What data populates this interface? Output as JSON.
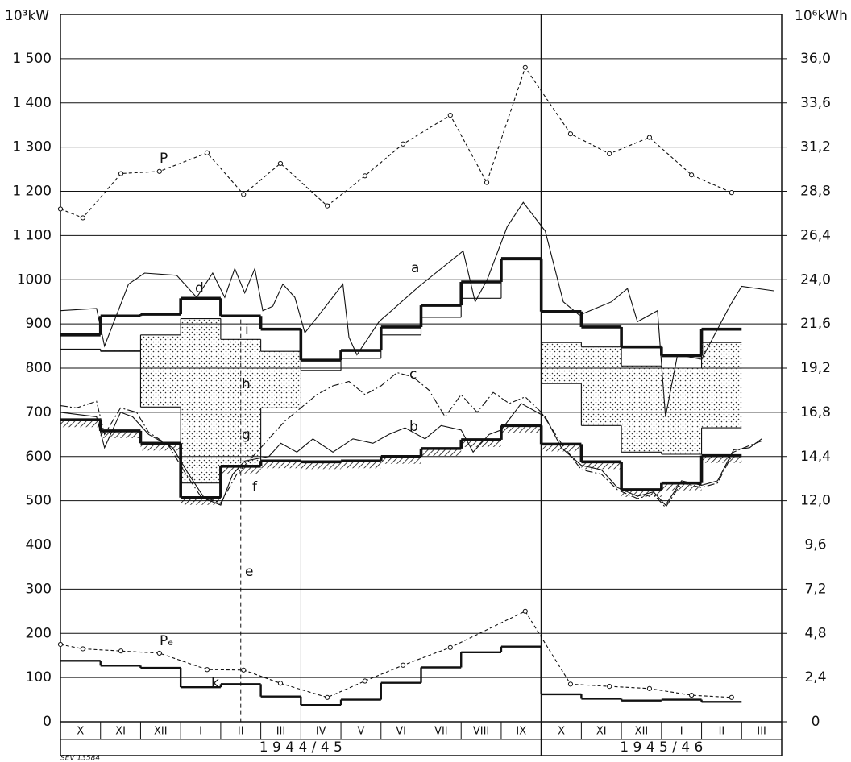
{
  "chart_data": {
    "type": "line",
    "y_label": "10³kW",
    "y2_label": "10⁶kWh",
    "categories": [
      "X",
      "XI",
      "XII",
      "I",
      "II",
      "III",
      "IV",
      "V",
      "VI",
      "VII",
      "VIII",
      "IX",
      "X",
      "XI",
      "XII",
      "I",
      "II",
      "III"
    ],
    "year_labels": [
      "1 9 4 4 / 4 5",
      "1 9 4 5 / 4 6"
    ],
    "xlim": [
      0,
      18
    ],
    "ylim": [
      0,
      1600
    ],
    "yticks": [
      0,
      100,
      200,
      300,
      400,
      500,
      600,
      700,
      800,
      900,
      {
        "value": 1000,
        "label": "1000"
      },
      {
        "value": 1100,
        "label": "1 100"
      },
      {
        "value": 1200,
        "label": "1 200"
      },
      {
        "value": 1300,
        "label": "1 300"
      },
      {
        "value": 1400,
        "label": "1 400"
      },
      {
        "value": 1500,
        "label": "1 500"
      }
    ],
    "y2lim": [
      0,
      38.4
    ],
    "y2ticks": [
      0,
      {
        "value": 2.4,
        "label": "2,4"
      },
      {
        "value": 4.8,
        "label": "4,8"
      },
      {
        "value": 7.2,
        "label": "7,2"
      },
      {
        "value": 9.6,
        "label": "9,6"
      },
      {
        "value": 12.0,
        "label": "12,0"
      },
      {
        "value": 14.4,
        "label": "14,4"
      },
      {
        "value": 16.8,
        "label": "16,8"
      },
      {
        "value": 19.2,
        "label": "19,2"
      },
      {
        "value": 21.6,
        "label": "21,6"
      },
      {
        "value": 24.0,
        "label": "24,0"
      },
      {
        "value": 26.4,
        "label": "26,4"
      },
      {
        "value": 28.8,
        "label": "28,8"
      },
      {
        "value": 31.2,
        "label": "31,2"
      },
      {
        "value": 33.6,
        "label": "33,6"
      },
      {
        "value": 36.0,
        "label": "36,0"
      }
    ],
    "grid": true,
    "color": "#111",
    "series": [
      {
        "name": "a",
        "kind": "curve",
        "dash": "solid",
        "weight": "thin",
        "x": [
          0,
          0.9,
          1.1,
          1.7,
          2.1,
          2.9,
          3.4,
          3.8,
          4.1,
          4.35,
          4.6,
          4.85,
          5.05,
          5.3,
          5.55,
          5.85,
          6.1,
          6.45,
          7.05,
          7.2,
          7.4,
          7.95,
          8.95,
          10.05,
          10.35,
          10.65,
          11.15,
          11.55,
          12.1,
          12.55,
          12.95,
          13.75,
          14.15,
          14.4,
          14.9,
          15.1,
          15.4,
          16.0,
          16.7,
          17.0,
          17.8
        ],
        "values": [
          930,
          935,
          850,
          990,
          1015,
          1010,
          960,
          1015,
          960,
          1025,
          970,
          1025,
          930,
          940,
          990,
          960,
          880,
          920,
          990,
          870,
          830,
          905,
          985,
          1065,
          950,
          1000,
          1120,
          1175,
          1110,
          950,
          920,
          950,
          980,
          905,
          930,
          690,
          830,
          820,
          940,
          985,
          975
        ]
      },
      {
        "name": "b",
        "kind": "curve",
        "dash": "solid",
        "weight": "thin",
        "x": [
          0,
          0.9,
          1.1,
          1.5,
          1.8,
          2.2,
          2.8,
          3.2,
          3.6,
          4.0,
          4.3,
          4.6,
          5.2,
          5.5,
          5.9,
          6.3,
          6.8,
          7.3,
          7.8,
          8.2,
          8.6,
          9.1,
          9.5,
          10.0,
          10.3,
          10.7,
          11.0,
          11.5,
          12.1,
          12.5,
          13.0,
          13.5,
          13.9,
          14.4,
          14.8,
          15.1,
          15.5,
          16.0,
          16.4,
          16.8,
          17.2,
          17.5
        ],
        "values": [
          700,
          690,
          620,
          700,
          690,
          650,
          620,
          560,
          505,
          490,
          560,
          590,
          600,
          630,
          610,
          640,
          610,
          640,
          630,
          650,
          665,
          640,
          670,
          660,
          610,
          650,
          660,
          720,
          690,
          620,
          580,
          570,
          530,
          510,
          520,
          490,
          545,
          535,
          545,
          615,
          620,
          640
        ]
      },
      {
        "name": "c",
        "kind": "curve",
        "dash": "dashdot",
        "weight": "thin",
        "x": [
          0,
          0.4,
          0.9,
          1.1,
          1.5,
          1.9,
          2.2,
          2.7,
          3.1,
          3.5,
          4.0,
          4.4,
          4.8,
          5.2,
          5.6,
          6.0,
          6.4,
          6.8,
          7.2,
          7.6,
          8.0,
          8.4,
          8.8,
          9.2,
          9.6,
          10.0,
          10.4,
          10.8,
          11.2,
          11.6,
          12.0,
          12.5,
          13.0,
          13.5,
          13.9,
          14.4,
          14.8,
          15.1,
          15.5,
          16.0,
          16.4,
          16.8,
          17.2,
          17.5
        ],
        "values": [
          715,
          710,
          725,
          650,
          710,
          700,
          655,
          625,
          565,
          510,
          495,
          560,
          600,
          640,
          680,
          710,
          740,
          760,
          770,
          740,
          760,
          790,
          780,
          750,
          690,
          740,
          700,
          745,
          720,
          735,
          700,
          630,
          570,
          560,
          525,
          505,
          515,
          485,
          540,
          530,
          540,
          610,
          625,
          635
        ]
      },
      {
        "name": "d",
        "kind": "step",
        "weight": "thick",
        "values": [
          875,
          918,
          922,
          958,
          918,
          888,
          818,
          840,
          893,
          942,
          995,
          1048,
          928,
          893,
          848,
          828,
          888,
          null
        ]
      },
      {
        "kind": "step",
        "weight": "thin",
        "fill_to": 5,
        "values": [
          843,
          838,
          875,
          912,
          865,
          838,
          795,
          822,
          875,
          915,
          958,
          1045,
          858,
          848,
          805,
          800,
          858,
          null
        ]
      },
      {
        "kind": "step",
        "weight": "thin",
        "values": [
          null,
          840,
          712,
          540,
          580,
          710,
          null,
          null,
          null,
          null,
          null,
          null,
          765,
          670,
          610,
          605,
          665,
          null
        ]
      },
      {
        "kind": "step",
        "weight": "thick",
        "hatch": true,
        "values": [
          683,
          658,
          630,
          507,
          578,
          590,
          588,
          590,
          600,
          618,
          638,
          670,
          628,
          588,
          525,
          540,
          602,
          null
        ]
      },
      {
        "name": "P",
        "kind": "curve",
        "dash": "dashed",
        "weight": "thin",
        "markers": true,
        "x": [
          0,
          0.56,
          1.51,
          2.47,
          3.66,
          4.57,
          5.49,
          6.66,
          7.6,
          8.55,
          9.73,
          10.64,
          11.6,
          12.73,
          13.7,
          14.7,
          15.75,
          16.75
        ],
        "values": [
          1160,
          1140,
          1240,
          1245,
          1287,
          1193,
          1263,
          1167,
          1235,
          1307,
          1372,
          1220,
          1480,
          1330,
          1285,
          1322,
          1237,
          1197
        ]
      },
      {
        "name": "Pₑ",
        "kind": "curve",
        "dash": "dashed",
        "weight": "thin",
        "markers": true,
        "x": [
          0,
          0.56,
          1.51,
          2.47,
          3.66,
          4.57,
          5.49,
          6.66,
          7.6,
          8.55,
          9.73,
          11.6,
          12.73,
          13.7,
          14.7,
          15.75,
          16.75
        ],
        "values": [
          175,
          165,
          160,
          155,
          118,
          117,
          87,
          55,
          92,
          128,
          168,
          250,
          85,
          80,
          75,
          60,
          55
        ]
      },
      {
        "name": "k",
        "kind": "step",
        "weight": "medium",
        "values": [
          138,
          127,
          122,
          78,
          85,
          57,
          38,
          50,
          88,
          123,
          157,
          170,
          62,
          52,
          48,
          50,
          45,
          null
        ]
      }
    ],
    "annotations": [
      "e",
      "f",
      "g",
      "h",
      "i",
      "SEV 13584"
    ]
  }
}
